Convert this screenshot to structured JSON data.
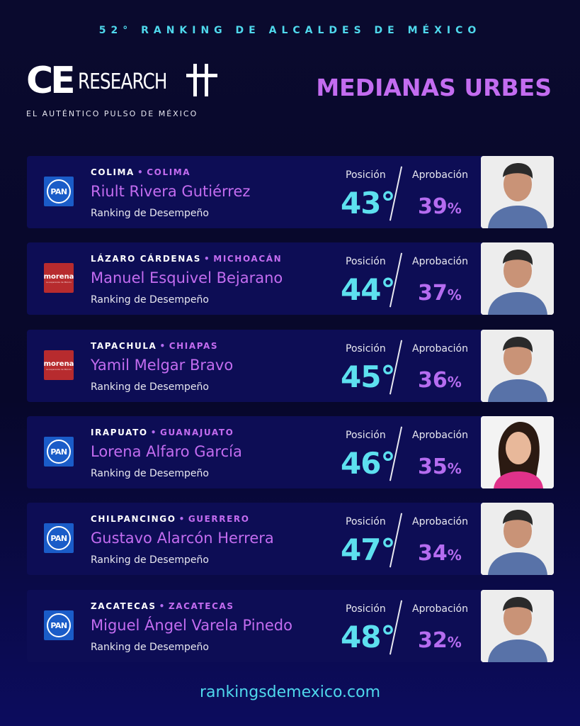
{
  "header": {
    "edition_title": "52° RANKING DE ALCALDES DE MÉXICO",
    "logo_ce": "CE",
    "logo_research": "RESEARCH",
    "tagline": "EL AUTÉNTICO PULSO DE MÉXICO",
    "category": "MEDIANAS URBES"
  },
  "labels": {
    "position": "Posición",
    "approval": "Aprobación",
    "ranking": "Ranking de Desempeño",
    "percent": "%"
  },
  "mayors": [
    {
      "city": "COLIMA",
      "state": "COLIMA",
      "name": "Riult Rivera Gutiérrez",
      "party": "PAN",
      "position": "43°",
      "approval": "39",
      "photo": "man-portrait-icon"
    },
    {
      "city": "LÁZARO CÁRDENAS",
      "state": "MICHOACÁN",
      "name": "Manuel Esquivel Bejarano",
      "party": "morena",
      "position": "44°",
      "approval": "37",
      "photo": "man-portrait-icon"
    },
    {
      "city": "TAPACHULA",
      "state": "CHIAPAS",
      "name": "Yamil Melgar Bravo",
      "party": "morena",
      "position": "45°",
      "approval": "36",
      "photo": "man-portrait-icon"
    },
    {
      "city": "IRAPUATO",
      "state": "GUANAJUATO",
      "name": "Lorena Alfaro García",
      "party": "PAN",
      "position": "46°",
      "approval": "35",
      "photo": "woman-portrait-icon"
    },
    {
      "city": "CHILPANCINGO",
      "state": "GUERRERO",
      "name": "Gustavo Alarcón Herrera",
      "party": "PAN",
      "position": "47°",
      "approval": "34",
      "photo": "man-portrait-icon"
    },
    {
      "city": "ZACATECAS",
      "state": "ZACATECAS",
      "name": "Miguel Ángel Varela Pinedo",
      "party": "PAN",
      "position": "48°",
      "approval": "32",
      "photo": "man-portrait-icon"
    }
  ],
  "party_logos": {
    "pan_text": "PAN",
    "morena_text": "morena",
    "morena_sub": "La esperanza de México"
  },
  "footer": {
    "url": "rankingsdemexico.com"
  },
  "colors": {
    "background": "#07072a",
    "card": "#0d0d55",
    "cyan": "#5de0ef",
    "purple": "#c36cf0",
    "pan_blue": "#1a5cc8",
    "morena_red": "#b72b2e"
  }
}
